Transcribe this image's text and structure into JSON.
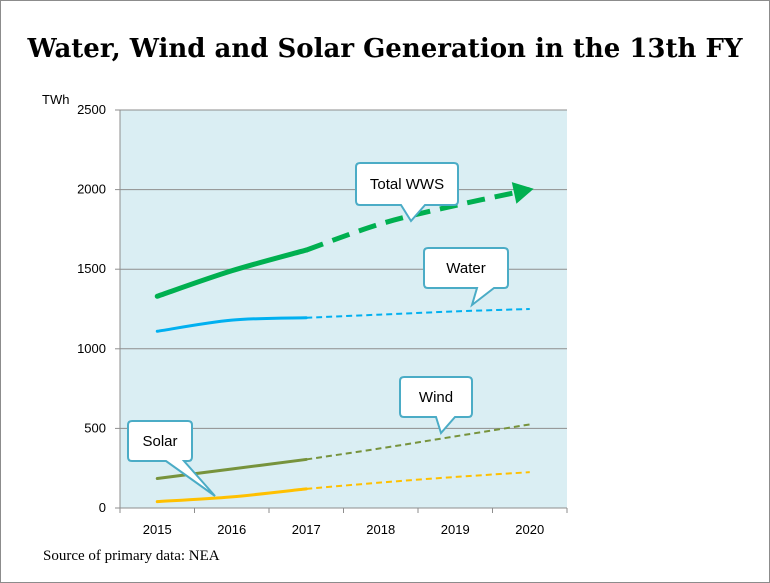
{
  "chart_data": {
    "type": "line",
    "title": "Water, Wind and Solar Generation in the 13th FY",
    "ylabel": "TWh",
    "xlabel": "",
    "x": [
      2015,
      2016,
      2017,
      2018,
      2019,
      2020
    ],
    "x_ticks": [
      "2015",
      "2016",
      "2017",
      "2018",
      "2019",
      "2020"
    ],
    "y_ticks": [
      "0",
      "500",
      "1000",
      "1500",
      "2000",
      "2500"
    ],
    "ylim": [
      0,
      2500
    ],
    "grid": "horizontal",
    "plot_background": "#daeef3",
    "note": "Solid lines through 2017, dashed projection 2017-2020",
    "series": [
      {
        "key": "total",
        "name": "Total WWS",
        "color": "#00b050",
        "actual_x": [
          2015,
          2016,
          2017
        ],
        "actual_y": [
          1330,
          1490,
          1620
        ],
        "projected_x": [
          2017,
          2018,
          2019,
          2020
        ],
        "projected_y": [
          1620,
          1785,
          1900,
          2000
        ],
        "arrow": true
      },
      {
        "key": "water",
        "name": "Water",
        "color": "#00b0f0",
        "actual_x": [
          2015,
          2016,
          2017
        ],
        "actual_y": [
          1110,
          1180,
          1195
        ],
        "projected_x": [
          2017,
          2018,
          2019,
          2020
        ],
        "projected_y": [
          1195,
          1215,
          1235,
          1250
        ]
      },
      {
        "key": "wind",
        "name": "Wind",
        "color": "#77933c",
        "actual_x": [
          2015,
          2016,
          2017
        ],
        "actual_y": [
          185,
          245,
          305
        ],
        "projected_x": [
          2017,
          2018,
          2019,
          2020
        ],
        "projected_y": [
          305,
          375,
          450,
          525
        ]
      },
      {
        "key": "solar",
        "name": "Solar",
        "color": "#ffc000",
        "actual_x": [
          2015,
          2016,
          2017
        ],
        "actual_y": [
          40,
          70,
          120
        ],
        "projected_x": [
          2017,
          2018,
          2019,
          2020
        ],
        "projected_y": [
          120,
          160,
          195,
          225
        ]
      }
    ]
  },
  "source": "Source of primary data: NEA"
}
